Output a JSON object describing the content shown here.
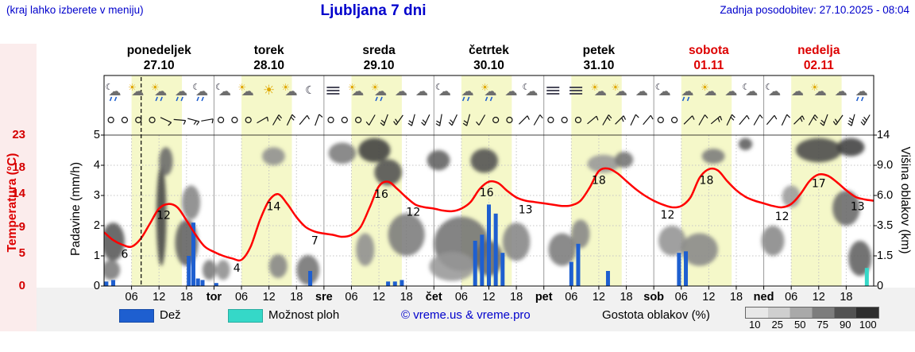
{
  "header": {
    "menu_hint": "(kraj lahko izberete v meniju)",
    "title": "Ljubljana 7 dni",
    "last_update": "Zadnja posodobitev: 27.10.2025 - 08:04"
  },
  "days": [
    {
      "name": "ponedeljek",
      "date": "27.10",
      "weekend": false
    },
    {
      "name": "torek",
      "date": "28.10",
      "weekend": false
    },
    {
      "name": "sreda",
      "date": "29.10",
      "weekend": false
    },
    {
      "name": "četrtek",
      "date": "30.10",
      "weekend": false
    },
    {
      "name": "petek",
      "date": "31.10",
      "weekend": false
    },
    {
      "name": "sobota",
      "date": "01.11",
      "weekend": true
    },
    {
      "name": "nedelja",
      "date": "02.11",
      "weekend": true
    }
  ],
  "axes": {
    "temp": {
      "label": "Temperatura (°C)",
      "ticks": [
        23,
        18,
        14,
        9,
        5,
        0
      ]
    },
    "precip": {
      "label": "Padavine (mm/h)",
      "ticks": [
        5,
        4,
        3,
        2,
        1,
        0
      ]
    },
    "cloud": {
      "label": "Višina oblakov (km)",
      "ticks": [
        "14",
        "9.0",
        "6.0",
        "3.5",
        "1.5",
        "0"
      ]
    },
    "time_ticks": [
      "06",
      "12",
      "18"
    ],
    "day_abbrs": [
      "tor",
      "sre",
      "čet",
      "pet",
      "sob",
      "ned"
    ]
  },
  "legend": {
    "rain": "Dež",
    "shower": "Možnost ploh",
    "copyright": "© vreme.us & vreme.pro",
    "cloud_density": "Gostota oblakov (%)",
    "density_ticks": [
      "10",
      "25",
      "50",
      "75",
      "90",
      "100"
    ],
    "density_colors": [
      "#e8e8e8",
      "#cfcfcf",
      "#a9a9a9",
      "#7d7d7d",
      "#525252",
      "#2e2e2e"
    ]
  },
  "colors": {
    "blue_text": "#0000cc",
    "red_text": "#dd0000",
    "temp_line": "#ff0000",
    "rain": "#1e5fd0",
    "shower": "#35d8c8",
    "day_band": "#f5f8c9",
    "grid": "#c4c4c4",
    "day_line": "#9a9a9a"
  },
  "chart_data": {
    "type": "meteogram",
    "x_unit": "hours from Monday 27.10 00:00",
    "temp_c_range": [
      0,
      23
    ],
    "precip_mm_range": [
      0,
      5
    ],
    "cloud_km_levels": [
      0,
      1.5,
      3.5,
      6,
      9,
      14
    ],
    "now_hour": 8.1,
    "day_band": {
      "start": 6,
      "end": 17
    },
    "icon_slots": [
      2,
      7,
      12,
      16.5,
      21
    ],
    "temperature_series": [
      [
        0,
        8.2
      ],
      [
        2,
        7
      ],
      [
        4,
        6.3
      ],
      [
        6,
        6
      ],
      [
        8,
        7.2
      ],
      [
        10,
        9.5
      ],
      [
        12,
        11.8
      ],
      [
        14,
        12.5
      ],
      [
        16,
        12
      ],
      [
        18,
        10
      ],
      [
        20,
        7.8
      ],
      [
        22,
        6
      ],
      [
        24,
        5.2
      ],
      [
        26,
        4.6
      ],
      [
        28,
        4.2
      ],
      [
        30,
        4
      ],
      [
        32,
        6
      ],
      [
        34,
        10
      ],
      [
        36,
        13
      ],
      [
        38,
        14
      ],
      [
        40,
        12.5
      ],
      [
        42,
        10.5
      ],
      [
        44,
        9
      ],
      [
        46,
        8.3
      ],
      [
        48,
        8
      ],
      [
        50,
        7.8
      ],
      [
        52,
        7.5
      ],
      [
        54,
        7.8
      ],
      [
        56,
        9
      ],
      [
        58,
        12
      ],
      [
        60,
        15.2
      ],
      [
        62,
        15.9
      ],
      [
        64,
        14.8
      ],
      [
        66,
        13.5
      ],
      [
        68,
        12.4
      ],
      [
        70,
        12
      ],
      [
        72,
        11.8
      ],
      [
        74,
        11.5
      ],
      [
        76,
        11.4
      ],
      [
        78,
        11.8
      ],
      [
        80,
        12.8
      ],
      [
        82,
        14.8
      ],
      [
        84,
        15.9
      ],
      [
        86,
        15.7
      ],
      [
        88,
        14.5
      ],
      [
        90,
        13.5
      ],
      [
        92,
        13
      ],
      [
        94,
        12.8
      ],
      [
        96,
        12.6
      ],
      [
        98,
        12.4
      ],
      [
        100,
        12.2
      ],
      [
        102,
        12.3
      ],
      [
        104,
        13
      ],
      [
        106,
        15
      ],
      [
        108,
        17.5
      ],
      [
        110,
        17.9
      ],
      [
        112,
        17.2
      ],
      [
        114,
        16
      ],
      [
        116,
        14.8
      ],
      [
        118,
        13.8
      ],
      [
        120,
        13
      ],
      [
        122,
        12.4
      ],
      [
        124,
        12
      ],
      [
        126,
        12.2
      ],
      [
        128,
        13.5
      ],
      [
        130,
        16.5
      ],
      [
        132,
        17.8
      ],
      [
        134,
        17.6
      ],
      [
        136,
        16
      ],
      [
        138,
        14.6
      ],
      [
        140,
        13.6
      ],
      [
        142,
        13
      ],
      [
        144,
        12.6
      ],
      [
        146,
        12.2
      ],
      [
        148,
        12
      ],
      [
        150,
        12.5
      ],
      [
        152,
        14
      ],
      [
        154,
        16
      ],
      [
        156,
        17
      ],
      [
        158,
        16.8
      ],
      [
        160,
        15.8
      ],
      [
        162,
        14.6
      ],
      [
        164,
        13.6
      ],
      [
        166,
        13.2
      ],
      [
        168,
        13
      ]
    ],
    "temperature_labels": [
      [
        4.5,
        "6"
      ],
      [
        13,
        "12"
      ],
      [
        29,
        "4"
      ],
      [
        37,
        "14"
      ],
      [
        46,
        "7"
      ],
      [
        60.5,
        "16"
      ],
      [
        67.5,
        "12"
      ],
      [
        83.5,
        "16"
      ],
      [
        92,
        "13"
      ],
      [
        108,
        "18"
      ],
      [
        123,
        "12"
      ],
      [
        131.5,
        "18"
      ],
      [
        148,
        "12"
      ],
      [
        156,
        "17"
      ],
      [
        164.5,
        "13"
      ]
    ],
    "precipitation_bars": [
      [
        0.5,
        0.15,
        "r"
      ],
      [
        2,
        0.2,
        "r"
      ],
      [
        18.5,
        1.0,
        "r"
      ],
      [
        19.5,
        2.1,
        "r"
      ],
      [
        20.5,
        0.25,
        "r"
      ],
      [
        21.5,
        0.2,
        "r"
      ],
      [
        24.5,
        0.1,
        "r"
      ],
      [
        45,
        0.5,
        "r"
      ],
      [
        62,
        0.15,
        "r"
      ],
      [
        63.5,
        0.15,
        "r"
      ],
      [
        65,
        0.2,
        "r"
      ],
      [
        81,
        1.5,
        "r"
      ],
      [
        82.5,
        1.7,
        "r"
      ],
      [
        84,
        2.7,
        "r"
      ],
      [
        85.5,
        2.4,
        "r"
      ],
      [
        87,
        1.1,
        "r"
      ],
      [
        102,
        0.8,
        "r"
      ],
      [
        103.5,
        1.4,
        "r"
      ],
      [
        110,
        0.5,
        "r"
      ],
      [
        125.5,
        1.1,
        "r"
      ],
      [
        127,
        1.15,
        "r"
      ],
      [
        166.5,
        0.6,
        "s"
      ]
    ],
    "cloud_blobs": [
      [
        2,
        2.5,
        5,
        2.5,
        75
      ],
      [
        1.5,
        0.8,
        4,
        1,
        55
      ],
      [
        12.5,
        5,
        2.2,
        8,
        85
      ],
      [
        13.5,
        10,
        3,
        4,
        65
      ],
      [
        18,
        2.5,
        5,
        3,
        70
      ],
      [
        19,
        5.5,
        4,
        3,
        50
      ],
      [
        23,
        0.8,
        3,
        1,
        55
      ],
      [
        26,
        0.8,
        3,
        1,
        45
      ],
      [
        37,
        10.5,
        5,
        3,
        45
      ],
      [
        38,
        1,
        4,
        1.2,
        50
      ],
      [
        44.5,
        0.8,
        5,
        1.5,
        60
      ],
      [
        52,
        11,
        6,
        3.5,
        55
      ],
      [
        59,
        11.5,
        7,
        4,
        88
      ],
      [
        62,
        8.5,
        6,
        3,
        78
      ],
      [
        57,
        2,
        4,
        2,
        45
      ],
      [
        66,
        3,
        8,
        3,
        55
      ],
      [
        73,
        10,
        5,
        3,
        70
      ],
      [
        78,
        2.5,
        12,
        3.5,
        60
      ],
      [
        76,
        1,
        10,
        1.5,
        40
      ],
      [
        83,
        10,
        6,
        3.5,
        78
      ],
      [
        84,
        1.5,
        6,
        2,
        65
      ],
      [
        90,
        2.5,
        6,
        2.5,
        50
      ],
      [
        100,
        2,
        6,
        2,
        55
      ],
      [
        104,
        3,
        4,
        2,
        50
      ],
      [
        109,
        9.5,
        7,
        2.5,
        40
      ],
      [
        113.5,
        10,
        4,
        2.5,
        60
      ],
      [
        124,
        2.5,
        6,
        2,
        42
      ],
      [
        130,
        2,
        8,
        2,
        48
      ],
      [
        133,
        10.5,
        5,
        2.5,
        55
      ],
      [
        140,
        12.5,
        3,
        2,
        72
      ],
      [
        146,
        2.5,
        5,
        2,
        48
      ],
      [
        150,
        6,
        4,
        2,
        38
      ],
      [
        156,
        11.5,
        10,
        4,
        82
      ],
      [
        163,
        12,
        6,
        3,
        88
      ],
      [
        162,
        5,
        6,
        3,
        65
      ],
      [
        165,
        1.5,
        5,
        2,
        70
      ]
    ],
    "wind_barbs": [
      "o",
      "o",
      "o",
      "o",
      "115:1",
      "95:1",
      "105:2",
      "80:1",
      "o",
      "o",
      "o",
      "60:1",
      "30:2",
      "25:2",
      "40:1",
      "20:1",
      "o",
      "o",
      "o",
      "210:1",
      "200:2",
      "215:2",
      "195:2",
      "205:2",
      "190:2",
      "205:2",
      "195:2",
      "210:1",
      "o",
      "o",
      "45:1",
      "30:1",
      "o",
      "o",
      "o",
      "50:1",
      "30:2",
      "45:2",
      "25:1",
      "40:1",
      "o",
      "o",
      "45:1",
      "30:1",
      "50:2",
      "25:2",
      "40:1",
      "30:1",
      "40:1",
      "25:1",
      "45:2",
      "30:2",
      "200:2",
      "215:2",
      "195:3",
      "210:3"
    ],
    "weather_icons": [
      [
        "moon-cloud-rain",
        "sun-cloud",
        "sun-cloud-rain",
        "cloud-rain",
        "moon-cloud-rain"
      ],
      [
        "moon-cloud",
        "sun-cloud",
        "sun",
        "sun-cloud",
        "moon"
      ],
      [
        "fog",
        "sun-cloud",
        "sun-cloud-rain",
        "cloud",
        "cloud"
      ],
      [
        "moon-cloud",
        "cloud-rain",
        "sun-cloud-rain",
        "cloud",
        "moon-cloud"
      ],
      [
        "fog",
        "fog",
        "sun-cloud",
        "sun-cloud",
        "cloud"
      ],
      [
        "moon-cloud",
        "cloud-rain",
        "sun-cloud",
        "cloud",
        "moon-cloud"
      ],
      [
        "moon-cloud",
        "cloud",
        "sun-cloud",
        "cloud",
        "cloud-rain"
      ]
    ]
  }
}
